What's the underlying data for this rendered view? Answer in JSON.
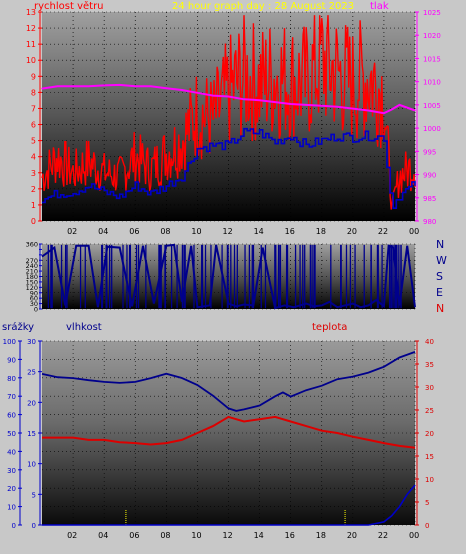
{
  "header": {
    "wind_label": "rychlost větru",
    "title": "24 hour graph day : 28 August 2023",
    "pressure_label": "tlak"
  },
  "bottom": {
    "rain_label": "srážky",
    "humidity_label": "vlhkost",
    "temp_label": "teplota"
  },
  "direction_labels": [
    "N",
    "W",
    "S",
    "E",
    "N"
  ],
  "colors": {
    "wind": "#ff0000",
    "gust_avg": "#0000c8",
    "pressure": "#ff00ff",
    "humidity": "#00008c",
    "temperature": "#dc0000",
    "rain": "#0000c8",
    "rain_marks": "#ffff00",
    "title": "#ffff00",
    "axis_left": "#0000cc",
    "axis_right": "#dd0000"
  },
  "chart_data": [
    {
      "type": "line",
      "x_ticks": [
        "02",
        "04",
        "06",
        "08",
        "10",
        "12",
        "14",
        "16",
        "18",
        "20",
        "22",
        "00"
      ],
      "ylim": [
        0,
        13
      ],
      "y_ticks": [
        "0",
        "1",
        "2",
        "3",
        "4",
        "5",
        "6",
        "7",
        "8",
        "9",
        "10",
        "11",
        "12",
        "13"
      ],
      "y2lim": [
        980,
        1025
      ],
      "y2_ticks": [
        "980",
        "985",
        "990",
        "995",
        "1000",
        "1005",
        "1010",
        "1015",
        "1020",
        "1025"
      ],
      "series": [
        {
          "axis": "left",
          "x": [
            0,
            1,
            2,
            3,
            4,
            5,
            6,
            7,
            8,
            9,
            10,
            11,
            12,
            13,
            14,
            15,
            16,
            17,
            18,
            19,
            20,
            21,
            22,
            22.5,
            23,
            24
          ],
          "values": [
            2.7,
            4,
            3,
            3.7,
            3,
            2.8,
            4,
            3.2,
            4.2,
            5,
            6.8,
            6.3,
            8,
            9,
            8.5,
            9,
            8.7,
            8.6,
            10,
            9.2,
            8.5,
            9,
            8,
            0.8,
            2.8,
            3.5
          ]
        },
        {
          "axis": "left",
          "x": [
            0,
            1,
            2,
            3,
            4,
            5,
            6,
            7,
            8,
            9,
            10,
            11,
            12,
            13,
            14,
            15,
            16,
            17,
            18,
            19,
            20,
            21,
            22,
            22.5,
            23,
            24
          ],
          "values": [
            1.3,
            1.7,
            1.8,
            2.2,
            1.8,
            1.5,
            2.2,
            1.7,
            2.2,
            2.8,
            4.5,
            4.7,
            4.7,
            5.5,
            5.5,
            4.9,
            5.3,
            4.7,
            5,
            5.3,
            5.2,
            5.3,
            5.2,
            0.9,
            1.6,
            2.3
          ]
        },
        {
          "axis": "right",
          "x": [
            0,
            1,
            2,
            3,
            4,
            5,
            6,
            7,
            8,
            9,
            10,
            11,
            12,
            13,
            14,
            15,
            16,
            17,
            18,
            19,
            20,
            21,
            22,
            22.5,
            23,
            24
          ],
          "values": [
            1008.5,
            1009,
            1009,
            1009,
            1009.2,
            1009.3,
            1009,
            1009,
            1008.6,
            1008.2,
            1007.6,
            1007,
            1006.8,
            1006.2,
            1006,
            1005.6,
            1005.2,
            1005,
            1004.8,
            1004.6,
            1004.2,
            1003.8,
            1003.2,
            1004,
            1005,
            1003.8
          ]
        }
      ]
    },
    {
      "type": "line",
      "x_ticks": [
        "02",
        "04",
        "06",
        "08",
        "10",
        "12",
        "14",
        "16",
        "18",
        "20",
        "22",
        "00"
      ],
      "ylim": [
        0,
        360
      ],
      "y_ticks": [
        "0",
        "30",
        "60",
        "90",
        "120",
        "150",
        "180",
        "210",
        "240",
        "270",
        "300",
        "330",
        "360"
      ],
      "series": [
        {
          "x": [
            0,
            0.8,
            1.5,
            2.2,
            3,
            3.6,
            4.2,
            5,
            5.8,
            6.5,
            7.2,
            8,
            8.5,
            9,
            9.6,
            10,
            10.8,
            11.2,
            12,
            12.5,
            13,
            13.6,
            14.2,
            15,
            15.6,
            16.2,
            17,
            17.5,
            18,
            18.5,
            19,
            19.5,
            20,
            20.5,
            21,
            21.5,
            22,
            22.3,
            22.6,
            23,
            23.5,
            24
          ],
          "values": [
            290,
            340,
            20,
            350,
            350,
            10,
            345,
            340,
            15,
            350,
            30,
            350,
            355,
            40,
            350,
            10,
            20,
            355,
            30,
            15,
            25,
            20,
            340,
            5,
            20,
            10,
            30,
            15,
            20,
            40,
            10,
            20,
            30,
            10,
            20,
            50,
            15,
            350,
            340,
            20,
            350,
            10
          ]
        }
      ]
    },
    {
      "type": "line",
      "x_ticks": [
        "02",
        "04",
        "06",
        "08",
        "10",
        "12",
        "14",
        "16",
        "18",
        "20",
        "22",
        "00"
      ],
      "ylim_rain": [
        0,
        30
      ],
      "y_ticks_rain": [
        "0",
        "5",
        "10",
        "15",
        "20",
        "25",
        "30"
      ],
      "ylim": [
        0,
        100
      ],
      "y_ticks": [
        "0",
        "10",
        "20",
        "30",
        "40",
        "50",
        "60",
        "70",
        "80",
        "90",
        "100"
      ],
      "y2lim": [
        0,
        40
      ],
      "y2_ticks": [
        "0",
        "5",
        "10",
        "15",
        "20",
        "25",
        "30",
        "35",
        "40"
      ],
      "series": [
        {
          "axis": "left",
          "x": [
            0,
            1,
            2,
            3,
            4,
            5,
            6,
            7,
            8,
            9,
            10,
            11,
            12,
            12.5,
            13,
            14,
            15,
            15.5,
            16,
            17,
            18,
            19,
            20,
            21,
            22,
            23,
            24
          ],
          "values": [
            82,
            80,
            80,
            79,
            78,
            77,
            78,
            80,
            82,
            80,
            76,
            70,
            63,
            62,
            63,
            65,
            70,
            72,
            70,
            73,
            76,
            79,
            81,
            83,
            86,
            91,
            94
          ]
        },
        {
          "axis": "right",
          "x": [
            0,
            1,
            2,
            3,
            4,
            5,
            6,
            7,
            8,
            9,
            10,
            11,
            12,
            13,
            14,
            15,
            16,
            17,
            18,
            19,
            20,
            21,
            22,
            23,
            24
          ],
          "values": [
            19,
            19,
            19,
            18.5,
            18.5,
            18,
            17.8,
            17.5,
            17.8,
            18.5,
            20,
            21.5,
            23.5,
            22.5,
            23,
            23.5,
            22.5,
            21.5,
            20.5,
            20,
            19.2,
            18.5,
            17.8,
            17.2,
            16.8
          ]
        },
        {
          "axis": "rain",
          "x": [
            0,
            21,
            22,
            22.5,
            23,
            23.5,
            24
          ],
          "values": [
            0,
            0,
            0.5,
            1.5,
            3,
            5,
            6.5
          ]
        }
      ]
    }
  ]
}
